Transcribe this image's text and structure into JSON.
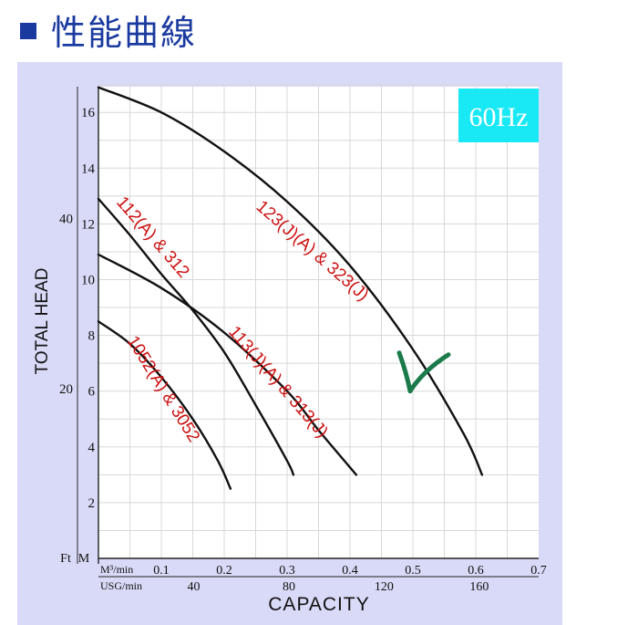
{
  "page": {
    "title": "性能曲線",
    "title_color": "#1a3aa0",
    "panel_color": "#d9daf7",
    "grid_color": "#d8d8d8",
    "curve_color": "#111111",
    "label_color": "#cc1111",
    "badge_color": "#19e8f5",
    "check_color": "#1a7a4a"
  },
  "chart_data": {
    "type": "line",
    "frequency_badge": "60Hz",
    "xlabel": "CAPACITY",
    "ylabel": "TOTAL HEAD",
    "x_units_primary": "M³/min",
    "x_units_secondary": "USG/min",
    "y_units_primary": "M",
    "y_units_secondary": "Ft",
    "xlim": [
      0,
      0.7
    ],
    "ylim": [
      0,
      17
    ],
    "x_ticks_m3": [
      "0.1",
      "0.2",
      "0.3",
      "0.4",
      "0.5",
      "0.6",
      "0.7"
    ],
    "x_ticks_usg": [
      {
        "value": 40,
        "label": "40"
      },
      {
        "value": 80,
        "label": "80"
      },
      {
        "value": 120,
        "label": "120"
      },
      {
        "value": 160,
        "label": "160"
      }
    ],
    "y_ticks_m": [
      "2",
      "4",
      "6",
      "8",
      "10",
      "12",
      "14",
      "16"
    ],
    "y_ticks_ft": [
      {
        "value": 20,
        "label": "20"
      },
      {
        "value": 40,
        "label": "40"
      }
    ],
    "grid": true,
    "series": [
      {
        "name": "123(J)(A) & 323(J)",
        "points": [
          [
            0,
            16.9
          ],
          [
            0.1,
            16.0
          ],
          [
            0.2,
            14.6
          ],
          [
            0.3,
            12.8
          ],
          [
            0.4,
            10.5
          ],
          [
            0.5,
            7.5
          ],
          [
            0.58,
            4.5
          ],
          [
            0.61,
            3.0
          ]
        ]
      },
      {
        "name": "112(A) & 312",
        "points": [
          [
            0,
            12.9
          ],
          [
            0.05,
            11.6
          ],
          [
            0.1,
            10.2
          ],
          [
            0.15,
            8.9
          ],
          [
            0.2,
            7.4
          ],
          [
            0.25,
            5.5
          ],
          [
            0.3,
            3.5
          ],
          [
            0.31,
            3.0
          ]
        ]
      },
      {
        "name": "113(J)(A) & 313(J)",
        "points": [
          [
            0,
            10.9
          ],
          [
            0.1,
            9.7
          ],
          [
            0.2,
            8.1
          ],
          [
            0.3,
            6.0
          ],
          [
            0.35,
            4.6
          ],
          [
            0.41,
            3.0
          ]
        ]
      },
      {
        "name": "1052(A) & 3052",
        "points": [
          [
            0,
            8.5
          ],
          [
            0.05,
            7.7
          ],
          [
            0.1,
            6.5
          ],
          [
            0.15,
            5.0
          ],
          [
            0.19,
            3.5
          ],
          [
            0.21,
            2.5
          ]
        ]
      }
    ],
    "annotations": [
      {
        "type": "checkmark",
        "near": [
          0.5,
          6.0
        ]
      }
    ]
  }
}
